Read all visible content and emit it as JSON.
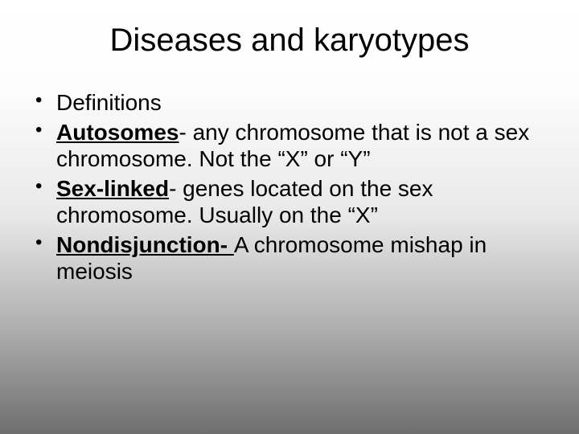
{
  "slide": {
    "title": "Diseases and karyotypes",
    "title_fontsize": 40,
    "body_fontsize": 28,
    "background_gradient": {
      "top": "#ffffff",
      "mid_upper": "#fdfdfd",
      "mid": "#e8e8e8",
      "mid_lower": "#b0b0b0",
      "bottom": "#6e6e6e"
    },
    "text_color": "#000000",
    "bullets": [
      {
        "term": "",
        "text": "Definitions"
      },
      {
        "term": "Autosomes",
        "text": "- any chromosome that is not a sex chromosome. Not the “X” or “Y”"
      },
      {
        "term": "Sex-linked",
        "text": "- genes located on the sex chromosome. Usually on the “X”"
      },
      {
        "term": "Nondisjunction- ",
        "text": "A chromosome mishap in meiosis"
      }
    ]
  }
}
